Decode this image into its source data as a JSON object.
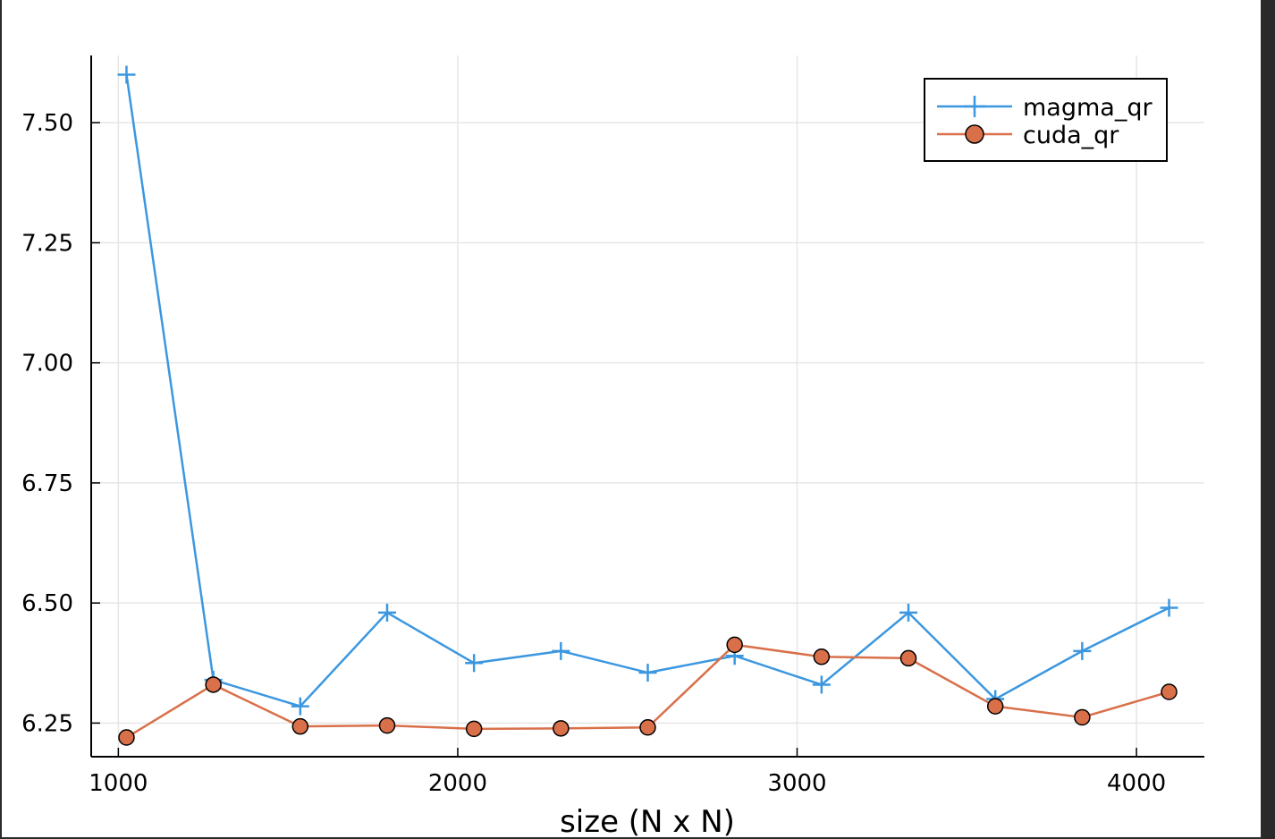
{
  "chart_data": {
    "type": "line",
    "title": "",
    "xlabel": "size (N x N)",
    "ylabel": "",
    "xlim": [
      920,
      4200
    ],
    "ylim": [
      6.18,
      7.64
    ],
    "xticks": [
      1000,
      2000,
      3000,
      4000
    ],
    "xtick_labels": [
      "1000",
      "2000",
      "3000",
      "4000"
    ],
    "yticks": [
      6.25,
      6.5,
      6.75,
      7.0,
      7.25,
      7.5
    ],
    "ytick_labels": [
      "6.25",
      "6.50",
      "6.75",
      "7.00",
      "7.25",
      "7.50"
    ],
    "grid": true,
    "legend_position": "top-right",
    "series": [
      {
        "name": "magma_qr",
        "color": "#3b97e0",
        "marker": "plus",
        "x": [
          1024,
          1280,
          1536,
          1792,
          2048,
          2304,
          2560,
          2816,
          3072,
          3328,
          3584,
          3840,
          4096
        ],
        "y": [
          7.6,
          6.34,
          6.285,
          6.48,
          6.375,
          6.4,
          6.355,
          6.39,
          6.33,
          6.48,
          6.3,
          6.4,
          6.49
        ]
      },
      {
        "name": "cuda_qr",
        "color": "#d9704a",
        "marker": "circle",
        "x": [
          1024,
          1280,
          1536,
          1792,
          2048,
          2304,
          2560,
          2816,
          3072,
          3328,
          3584,
          3840,
          4096
        ],
        "y": [
          6.22,
          6.33,
          6.243,
          6.245,
          6.238,
          6.239,
          6.241,
          6.413,
          6.388,
          6.385,
          6.285,
          6.262,
          6.315
        ]
      }
    ]
  }
}
